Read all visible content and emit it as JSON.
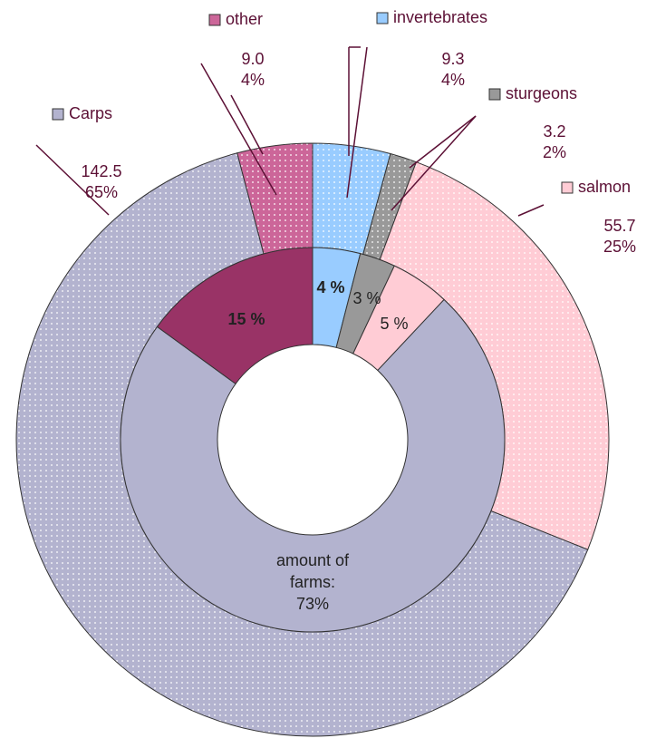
{
  "chart_data": {
    "type": "donut",
    "outer": {
      "categories": [
        "invertebrates",
        "sturgeons",
        "salmon",
        "Carps",
        "other"
      ],
      "values": [
        9.3,
        3.2,
        55.7,
        142.5,
        9.0
      ],
      "value_labels": [
        "9.3",
        "3.2",
        "55.7",
        "142.5",
        "9.0"
      ],
      "percents": [
        4,
        2,
        25,
        65,
        4
      ],
      "percent_labels": [
        "4%",
        "2%",
        "25%",
        "65%",
        "4%"
      ],
      "colors": [
        "#99ccff",
        "#999999",
        "#ffccd5",
        "#b3b3cf",
        "#cc6699"
      ]
    },
    "inner": {
      "title": "amount of farms:",
      "values": [
        4,
        3,
        5,
        73,
        15
      ],
      "value_labels": [
        "4 %",
        "3 %",
        "5 %",
        "73%",
        "15 %"
      ],
      "colors": [
        "#99ccff",
        "#999999",
        "#ffccd5",
        "#b3b3cf",
        "#993366"
      ]
    }
  }
}
